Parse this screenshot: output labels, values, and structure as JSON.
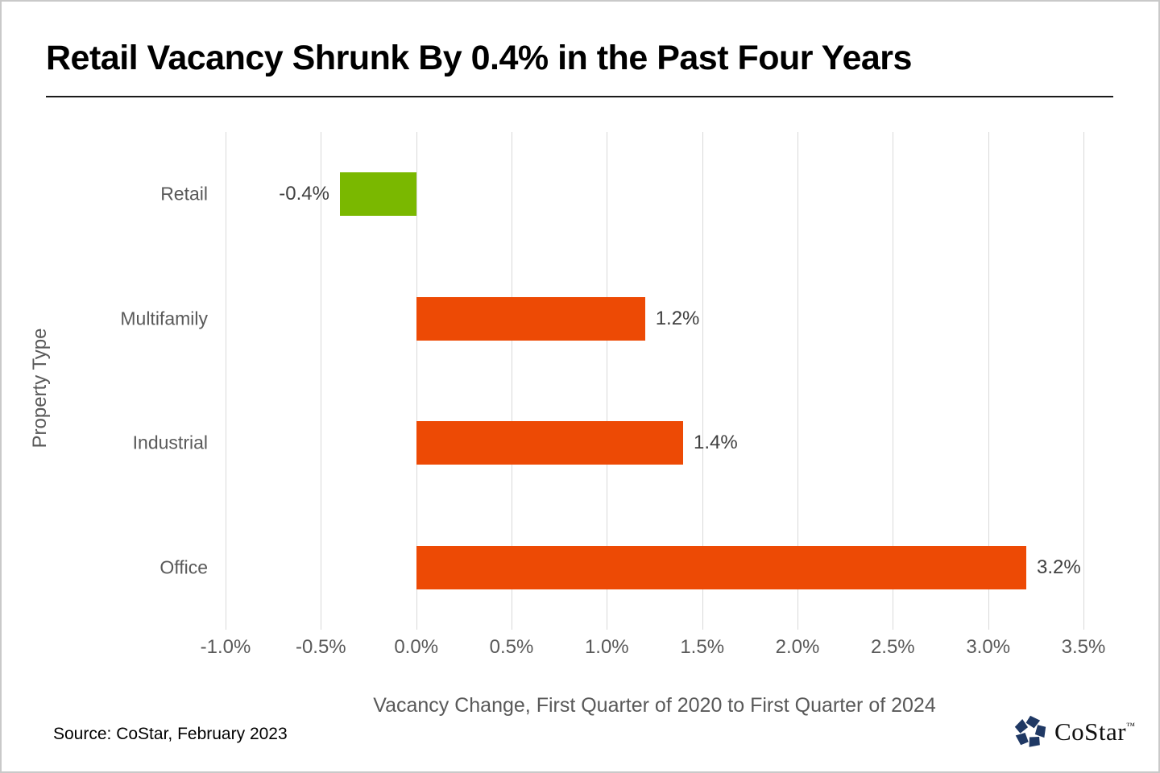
{
  "page": {
    "title": "Retail Vacancy Shrunk By 0.4% in the Past Four Years",
    "source_note": "Source: CoStar, February 2023",
    "logo": {
      "text": "CoStar",
      "tm": "™"
    }
  },
  "chart_data": {
    "type": "bar",
    "orientation": "horizontal",
    "title": "Retail Vacancy Shrunk By 0.4% in the Past Four Years",
    "categories": [
      "Retail",
      "Multifamily",
      "Industrial",
      "Office"
    ],
    "values": [
      -0.4,
      1.2,
      1.4,
      3.2
    ],
    "value_labels": [
      "-0.4%",
      "1.2%",
      "1.4%",
      "3.2%"
    ],
    "bar_colors": [
      "#7AB800",
      "#ED4A05",
      "#ED4A05",
      "#ED4A05"
    ],
    "xlabel": "Vacancy Change, First Quarter of 2020 to First Quarter of 2024",
    "ylabel": "Property Type",
    "xlim": [
      -1.0,
      3.5
    ],
    "xticks": [
      -1.0,
      -0.5,
      0.0,
      0.5,
      1.0,
      1.5,
      2.0,
      2.5,
      3.0,
      3.5
    ],
    "xtick_labels": [
      "-1.0%",
      "-0.5%",
      "0.0%",
      "0.5%",
      "1.0%",
      "1.5%",
      "2.0%",
      "2.5%",
      "3.0%",
      "3.5%"
    ],
    "grid": true,
    "legend": false
  },
  "colors": {
    "green": "#7AB800",
    "orange": "#ED4A05",
    "gridline": "#D9D9D9",
    "axis_text": "#595959",
    "value_text": "#404040",
    "logo_navy": "#1F3864"
  }
}
